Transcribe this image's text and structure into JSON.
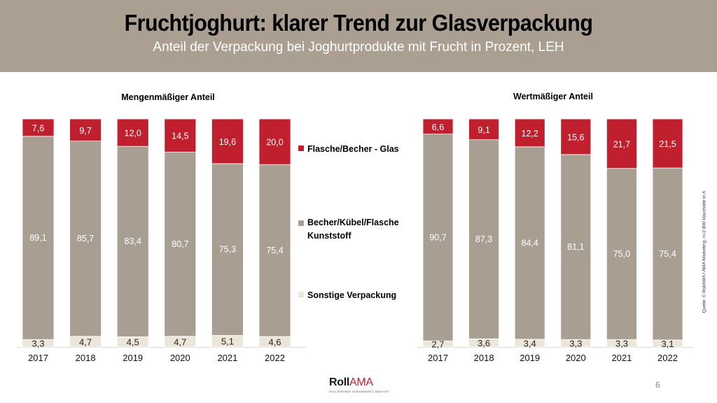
{
  "header": {
    "title": "Fruchtjoghurt: klarer Trend zur Glasverpackung",
    "subtitle": "Anteil der Verpackung bei Joghurtprodukte mit Frucht in Prozent, LEH"
  },
  "colors": {
    "header_bg": "#ab9f92",
    "glas": "#c0202e",
    "kunststoff": "#a89e91",
    "sonstige": "#ece6d9"
  },
  "legend": [
    {
      "label": "Flasche/Becher - Glas",
      "color": "#c0202e"
    },
    {
      "label": "Becher/Kübel/Flasche Kunststoff",
      "color": "#a89e91"
    },
    {
      "label": "Sonstige Verpackung",
      "color": "#ece6d9"
    }
  ],
  "chart_data": [
    {
      "type": "bar",
      "stacked": true,
      "percent_stacked": true,
      "title": "Mengenmäßiger Anteil",
      "categories": [
        "2017",
        "2018",
        "2019",
        "2020",
        "2021",
        "2022"
      ],
      "series": [
        {
          "name": "Sonstige Verpackung",
          "labels": [
            "3,3",
            "4,7",
            "4,5",
            "4,7",
            "5,1",
            "4,6"
          ],
          "values": [
            3.3,
            4.7,
            4.5,
            4.7,
            5.1,
            4.6
          ]
        },
        {
          "name": "Becher/Kübel/Flasche Kunststoff",
          "labels": [
            "89,1",
            "85,7",
            "83,4",
            "80,7",
            "75,3",
            "75,4"
          ],
          "values": [
            89.1,
            85.7,
            83.4,
            80.7,
            75.3,
            75.4
          ]
        },
        {
          "name": "Flasche/Becher - Glas",
          "labels": [
            "7,6",
            "9,7",
            "12,0",
            "14,5",
            "19,6",
            "20,0"
          ],
          "values": [
            7.6,
            9.7,
            12.0,
            14.5,
            19.6,
            20.0
          ]
        }
      ],
      "xlabel": "",
      "ylabel": "",
      "ylim": [
        0,
        100
      ],
      "grid": false,
      "legend": "right"
    },
    {
      "type": "bar",
      "stacked": true,
      "percent_stacked": true,
      "title": "Wertmäßiger Anteil",
      "categories": [
        "2017",
        "2018",
        "2019",
        "2020",
        "2021",
        "2022"
      ],
      "series": [
        {
          "name": "Sonstige Verpackung",
          "labels": [
            "2,7",
            "3,6",
            "3,4",
            "3,3",
            "3,3",
            "3,1"
          ],
          "values": [
            2.7,
            3.6,
            3.4,
            3.3,
            3.3,
            3.1
          ]
        },
        {
          "name": "Becher/Kübel/Flasche Kunststoff",
          "labels": [
            "90,7",
            "87,3",
            "84,4",
            "81,1",
            "75,0",
            "75,4"
          ],
          "values": [
            90.7,
            87.3,
            84.4,
            81.1,
            75.0,
            75.4
          ]
        },
        {
          "name": "Flasche/Becher - Glas",
          "labels": [
            "6,6",
            "9,1",
            "12,2",
            "15,6",
            "21,7",
            "21,5"
          ],
          "values": [
            6.6,
            9.1,
            12.2,
            15.6,
            21.7,
            21.5
          ]
        }
      ],
      "xlabel": "",
      "ylabel": "",
      "ylim": [
        0,
        100
      ],
      "grid": false,
      "legend": "left"
    }
  ],
  "source": "Quelle: © RollAMA / AMA-Marketing, n=2.800 Haushalte in A",
  "logo": {
    "roll": "Roll",
    "ama": "AMA",
    "tagline": "ROLLIERENDE AGRARMARKT-ANALYSE"
  },
  "page_number": "6"
}
